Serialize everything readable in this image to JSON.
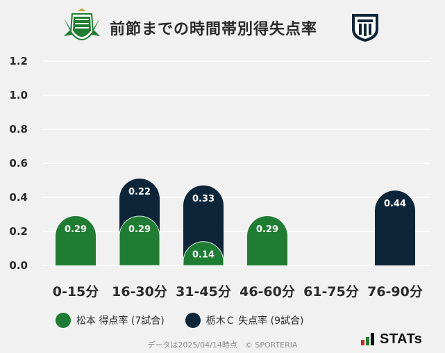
{
  "title": "前節までの時間帯別得失点率",
  "colors": {
    "green": "#1e7d32",
    "navy": "#0d2538",
    "grid": "#ffffff",
    "text": "#2a2a2a"
  },
  "legend": [
    {
      "label": "松本 得点率 (7試合)",
      "color": "#1e7d32"
    },
    {
      "label": "栃木Ｃ 失点率 (9試合)",
      "color": "#0d2538"
    }
  ],
  "footer": "データは2025/04/14時点　© SPORTERIA",
  "stats_logo": "STATs",
  "chart_data": {
    "type": "bar",
    "stacked": true,
    "categories": [
      "0-15分",
      "16-30分",
      "31-45分",
      "46-60分",
      "61-75分",
      "76-90分"
    ],
    "series": [
      {
        "name": "松本 得点率 (7試合)",
        "color": "#1e7d32",
        "values": [
          0.29,
          0.29,
          0.14,
          0.29,
          0,
          0
        ]
      },
      {
        "name": "栃木Ｃ 失点率 (9試合)",
        "color": "#0d2538",
        "values": [
          0,
          0.22,
          0.33,
          0,
          0,
          0.44
        ]
      }
    ],
    "yticks": [
      "0.0",
      "0.2",
      "0.4",
      "0.6",
      "0.8",
      "1.0",
      "1.2"
    ],
    "ylim": [
      0,
      1.2
    ],
    "grid": true
  }
}
